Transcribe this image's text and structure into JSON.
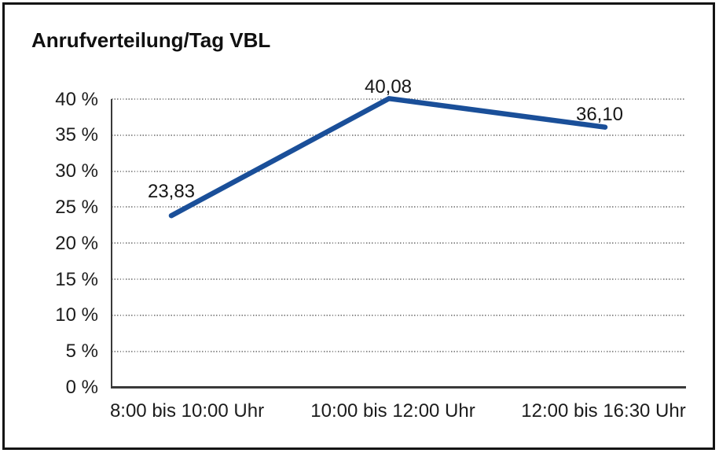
{
  "chart_data": {
    "type": "line",
    "title": "Anrufverteilung/Tag VBL",
    "categories": [
      "8:00 bis 10:00 Uhr",
      "10:00 bis 12:00 Uhr",
      "12:00 bis 16:30 Uhr"
    ],
    "series": [
      {
        "name": "Anrufverteilung",
        "values": [
          23.83,
          40.08,
          36.1
        ],
        "point_labels": [
          "23,83",
          "40,08",
          "36,10"
        ]
      }
    ],
    "xlabel": "",
    "ylabel": "",
    "ylim": [
      0,
      40
    ],
    "y_tick_step": 5,
    "y_tick_labels": [
      "0 %",
      "5 %",
      "10 %",
      "15 %",
      "20 %",
      "25 %",
      "30 %",
      "35 %",
      "40 %"
    ],
    "grid": "horizontal-dotted",
    "legend_position": "none",
    "colors": {
      "line": "#1a4f99",
      "text": "#1c1c1c",
      "grid": "#8f8f8f",
      "axis": "#3a3a3a",
      "frame": "#141414",
      "background": "#ffffff"
    }
  }
}
